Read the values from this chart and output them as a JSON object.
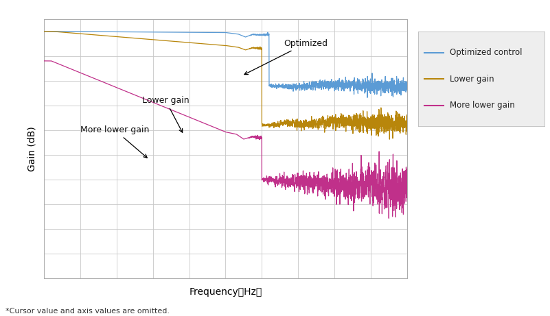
{
  "xlabel": "Frequency（Hz）",
  "ylabel": "Gain (dB)",
  "footnote": "*Cursor value and axis values are omitted.",
  "legend_entries": [
    "Optimized control",
    "Lower gain",
    "More lower gain"
  ],
  "line_colors": [
    "#5B9BD5",
    "#B8860B",
    "#C0308A"
  ],
  "background_color": "#FFFFFF",
  "grid_color": "#C8C8C8",
  "legend_bg": "#EEEEEE",
  "ylim": [
    -100,
    5
  ],
  "xlim": [
    0,
    1
  ]
}
